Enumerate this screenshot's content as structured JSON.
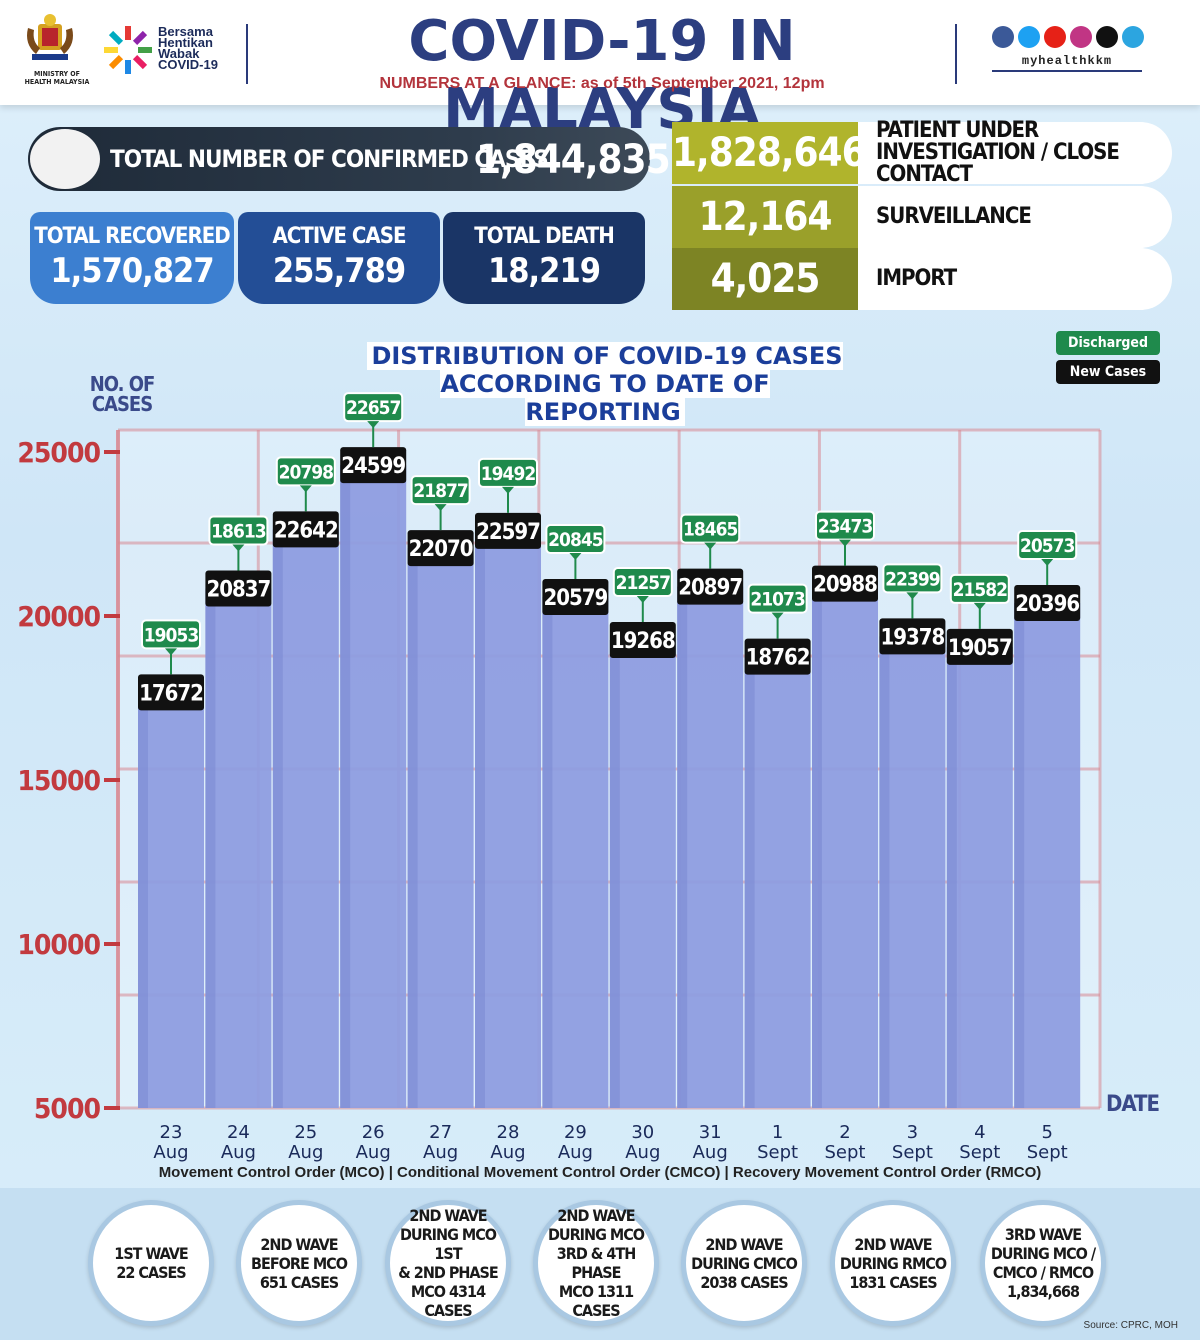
{
  "header": {
    "ministry_text": "MINISTRY OF HEALTH MALAYSIA",
    "campaign_text": [
      "Bersama",
      "Hentikan",
      "Wabak",
      "COVID-19"
    ],
    "title": "COVID-19 IN MALAYSIA",
    "subtitle": "NUMBERS AT A GLANCE: as of 5th September 2021, 12pm",
    "social_handle": "myhealthkkm",
    "social_icons": [
      "facebook-icon",
      "twitter-icon",
      "youtube-icon",
      "instagram-icon",
      "tiktok-icon",
      "telegram-icon"
    ]
  },
  "summary": {
    "total_label": "TOTAL NUMBER OF CONFIRMED CASES",
    "total_value": "1,844,835",
    "recovered_label": "TOTAL RECOVERED",
    "recovered_value": "1,570,827",
    "active_label": "ACTIVE CASE",
    "active_value": "255,789",
    "death_label": "TOTAL DEATH",
    "death_value": "18,219"
  },
  "side_stats": [
    {
      "value": "1,828,646",
      "label": "PATIENT UNDER INVESTIGATION / CLOSE CONTACT",
      "color": "#b0b42c"
    },
    {
      "value": "12,164",
      "label": "SURVEILLANCE",
      "color": "#9aa02a"
    },
    {
      "value": "4,025",
      "label": "IMPORT",
      "color": "#7d8424"
    }
  ],
  "colors": {
    "discharged": "#1f8a4c",
    "new_cases": "#111111",
    "bar": "#8e9de0",
    "grid": "#d98a94",
    "axis_text": "#c23a3f",
    "recovered_box": "#3c7fd0",
    "active_box": "#234e96",
    "death_box": "#1a3566"
  },
  "chart_data": {
    "type": "bar",
    "title": "DISTRIBUTION OF COVID-19 CASES ACCORDING TO DATE OF REPORTING",
    "ylabel": "NO. OF CASES",
    "xlabel": "DATE",
    "ylim": [
      5000,
      25000
    ],
    "yticks": [
      5000,
      10000,
      15000,
      20000,
      25000
    ],
    "legend": [
      "Discharged",
      "New Cases"
    ],
    "legend_position": "top-right",
    "categories": [
      [
        "23",
        "Aug"
      ],
      [
        "24",
        "Aug"
      ],
      [
        "25",
        "Aug"
      ],
      [
        "26",
        "Aug"
      ],
      [
        "27",
        "Aug"
      ],
      [
        "28",
        "Aug"
      ],
      [
        "29",
        "Aug"
      ],
      [
        "30",
        "Aug"
      ],
      [
        "31",
        "Aug"
      ],
      [
        "1",
        "Sept"
      ],
      [
        "2",
        "Sept"
      ],
      [
        "3",
        "Sept"
      ],
      [
        "4",
        "Sept"
      ],
      [
        "5",
        "Sept"
      ]
    ],
    "series": [
      {
        "name": "New Cases",
        "values": [
          17672,
          20837,
          22642,
          24599,
          22070,
          22597,
          20579,
          19268,
          20897,
          18762,
          20988,
          19378,
          19057,
          20396
        ]
      },
      {
        "name": "Discharged",
        "values": [
          19053,
          18613,
          20798,
          22657,
          21877,
          19492,
          20845,
          21257,
          18465,
          21073,
          23473,
          22399,
          21582,
          20573
        ]
      }
    ]
  },
  "footer": {
    "mco_line": "Movement Control Order (MCO) | Conditional Movement Control Order (CMCO) | Recovery Movement Control Order (RMCO)",
    "waves": [
      [
        "1ST WAVE",
        "22 CASES"
      ],
      [
        "2ND WAVE",
        "BEFORE MCO",
        "651 CASES"
      ],
      [
        "2ND WAVE",
        "DURING MCO 1ST",
        "& 2ND PHASE",
        "MCO 4314",
        "CASES"
      ],
      [
        "2ND WAVE",
        "DURING MCO",
        "3RD & 4TH PHASE",
        "MCO 1311",
        "CASES"
      ],
      [
        "2ND WAVE",
        "DURING CMCO",
        "2038 CASES"
      ],
      [
        "2ND WAVE",
        "DURING RMCO",
        "1831 CASES"
      ],
      [
        "3RD WAVE",
        "DURING MCO /",
        "CMCO / RMCO",
        "1,834,668"
      ]
    ],
    "source": "Source: CPRC, MOH"
  }
}
